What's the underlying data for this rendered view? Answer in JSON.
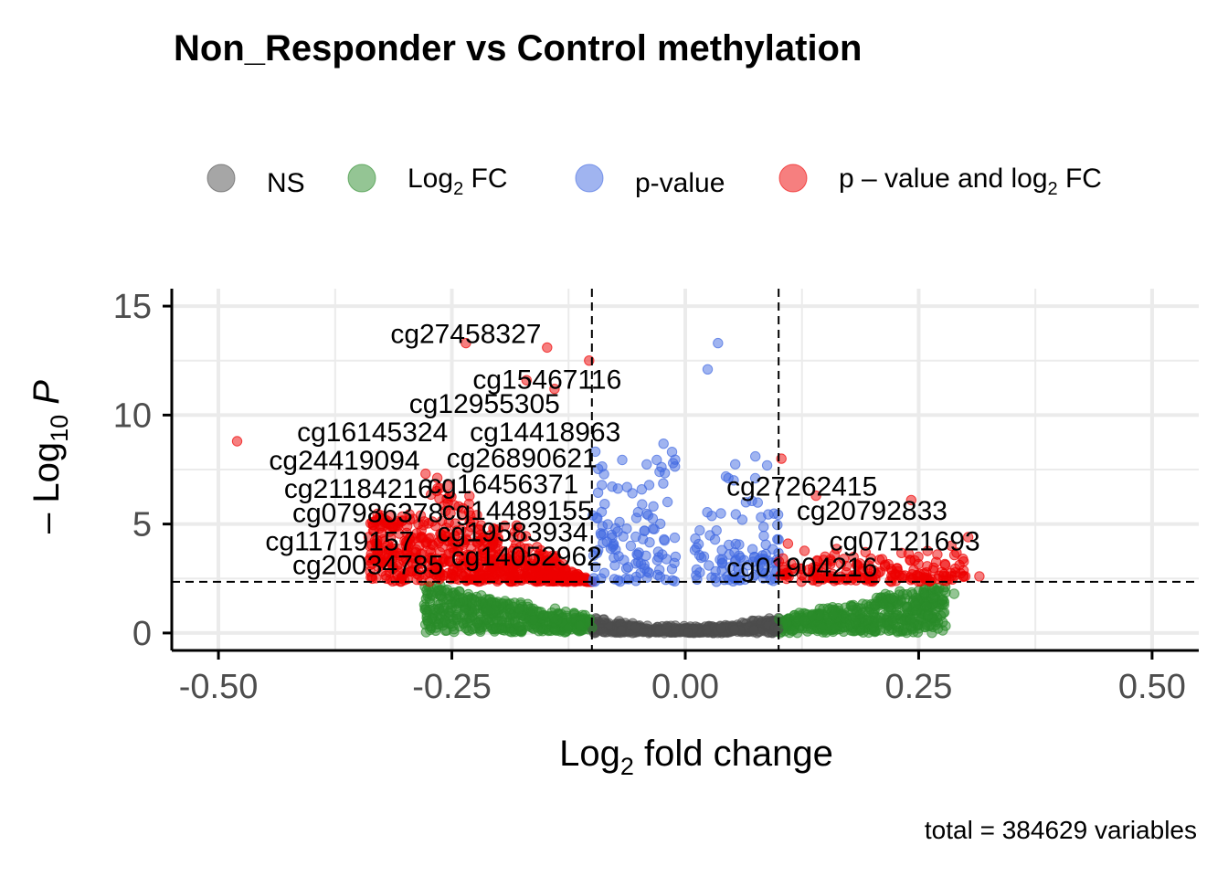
{
  "chart_data": {
    "type": "scatter",
    "title": "Non_Responder vs Control methylation",
    "xlabel": "Log2 fold change",
    "ylabel": "-Log10 P",
    "caption": "total = 384629 variables",
    "xlim": [
      -0.55,
      0.55
    ],
    "ylim": [
      -0.8,
      15.8
    ],
    "x_ticks": [
      -0.5,
      -0.25,
      0.0,
      0.25,
      0.5
    ],
    "x_tick_labels": [
      "-0.50",
      "-0.25",
      "0.00",
      "0.25",
      "0.50"
    ],
    "y_ticks": [
      0,
      5,
      10,
      15
    ],
    "y_tick_labels": [
      "0",
      "5",
      "10",
      "15"
    ],
    "grid": true,
    "legend_position": "top",
    "fc_cutoff": 0.1,
    "p_cutoff_neglog10": 2.35,
    "colors": {
      "NS": "#4d4d4d",
      "FC": "#2a8b2a",
      "P": "#4169e1",
      "P_FC": "#ee0000"
    },
    "series": [
      {
        "name": "NS",
        "key": "NS"
      },
      {
        "name": "Log2 FC",
        "key": "FC"
      },
      {
        "name": "p-value",
        "key": "P"
      },
      {
        "name": "p - value and log2 FC",
        "key": "P_FC"
      }
    ],
    "highlight_points": [
      {
        "x": -0.48,
        "y": 8.8
      },
      {
        "x": -0.235,
        "y": 13.3
      },
      {
        "x": -0.148,
        "y": 13.1
      },
      {
        "x": -0.103,
        "y": 12.5
      },
      {
        "x": -0.14,
        "y": 11.2
      },
      {
        "x": -0.17,
        "y": 11.6
      },
      {
        "x": 0.103,
        "y": 8.0
      },
      {
        "x": 0.035,
        "y": 13.3
      },
      {
        "x": 0.024,
        "y": 12.1
      },
      {
        "x": 0.242,
        "y": 6.1
      },
      {
        "x": 0.303,
        "y": 4.4
      },
      {
        "x": 0.315,
        "y": 2.6
      },
      {
        "x": 0.3,
        "y": 2.6
      },
      {
        "x": 0.27,
        "y": 3.6
      },
      {
        "x": 0.285,
        "y": 4.0
      },
      {
        "x": 0.11,
        "y": 4.1
      },
      {
        "x": 0.14,
        "y": 6.3
      },
      {
        "x": 0.075,
        "y": 7.1
      },
      {
        "x": 0.065,
        "y": 6.0
      },
      {
        "x": 0.275,
        "y": 1.5
      },
      {
        "x": 0.288,
        "y": 1.8
      },
      {
        "x": 0.265,
        "y": 1.6
      }
    ],
    "point_labels": [
      {
        "text": "cg27458327",
        "x": -0.235,
        "y": 13.3
      },
      {
        "text": "cg15467116",
        "x": -0.148,
        "y": 11.2
      },
      {
        "text": "cg12955305",
        "x": -0.215,
        "y": 10.1
      },
      {
        "text": "cg16145324",
        "x": -0.335,
        "y": 8.8
      },
      {
        "text": "cg14418963",
        "x": -0.15,
        "y": 8.8
      },
      {
        "text": "cg24419094",
        "x": -0.365,
        "y": 7.5
      },
      {
        "text": "cg26890621",
        "x": -0.175,
        "y": 7.6
      },
      {
        "text": "cg21184216",
        "x": -0.35,
        "y": 6.2
      },
      {
        "text": "cg16456371",
        "x": -0.195,
        "y": 6.4
      },
      {
        "text": "cg07986378",
        "x": -0.34,
        "y": 5.1
      },
      {
        "text": "cg14489155",
        "x": -0.18,
        "y": 5.2
      },
      {
        "text": "cg19583934",
        "x": -0.185,
        "y": 4.2
      },
      {
        "text": "cg11719157",
        "x": -0.37,
        "y": 3.8
      },
      {
        "text": "cg14052962",
        "x": -0.17,
        "y": 3.1
      },
      {
        "text": "cg20034785",
        "x": -0.34,
        "y": 2.7
      },
      {
        "text": "cg27262415",
        "x": 0.125,
        "y": 6.3
      },
      {
        "text": "cg20792833",
        "x": 0.2,
        "y": 5.2
      },
      {
        "text": "cg07121693",
        "x": 0.235,
        "y": 3.8
      },
      {
        "text": "cg01904216",
        "x": 0.125,
        "y": 2.6
      }
    ]
  }
}
